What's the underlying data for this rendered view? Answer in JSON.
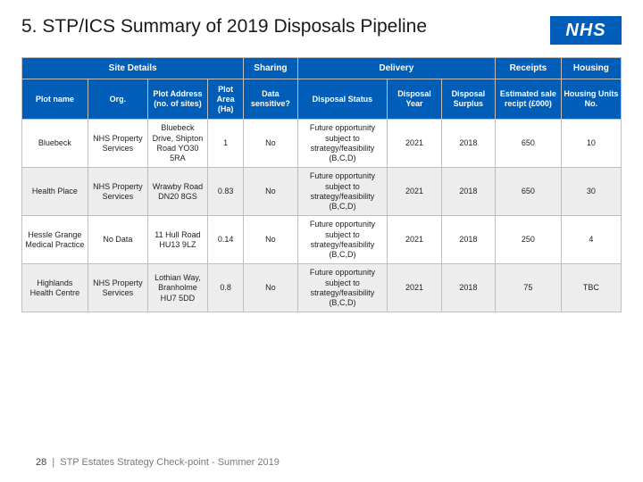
{
  "title": "5. STP/ICS Summary of 2019 Disposals Pipeline",
  "logo_text": "NHS",
  "colors": {
    "header_bg": "#005eb8",
    "header_fg": "#ffffff",
    "row_alt_bg": "#ededed",
    "border": "#bfbfbf",
    "title_color": "#1a1a1a",
    "footer_color": "#7a7a7a"
  },
  "typography": {
    "title_fontsize": 21,
    "header_fontsize": 10,
    "colheader_fontsize": 9,
    "cell_fontsize": 9,
    "footer_fontsize": 11
  },
  "group_headers": [
    {
      "label": "Site Details",
      "span": 4
    },
    {
      "label": "Sharing",
      "span": 1
    },
    {
      "label": "Delivery",
      "span": 3
    },
    {
      "label": "Receipts",
      "span": 1
    },
    {
      "label": "Housing",
      "span": 1
    }
  ],
  "columns": [
    {
      "label": "Plot name",
      "w": 11
    },
    {
      "label": "Org.",
      "w": 10
    },
    {
      "label": "Plot Address (no. of sites)",
      "w": 10
    },
    {
      "label": "Plot Area (Ha)",
      "w": 6
    },
    {
      "label": "Data sensitive?",
      "w": 9
    },
    {
      "label": "Disposal Status",
      "w": 15
    },
    {
      "label": "Disposal Year",
      "w": 9
    },
    {
      "label": "Disposal Surplus",
      "w": 9
    },
    {
      "label": "Estimated sale recipt (£000)",
      "w": 11
    },
    {
      "label": "Housing Units No.",
      "w": 10
    }
  ],
  "rows": [
    {
      "alt": false,
      "cells": [
        "Bluebeck",
        "NHS Property Services",
        "Bluebeck Drive, Shipton Road YO30 5RA",
        "1",
        "No",
        "Future opportunity subject to strategy/feasibility (B,C,D)",
        "2021",
        "2018",
        "650",
        "10"
      ]
    },
    {
      "alt": true,
      "cells": [
        "Health Place",
        "NHS Property Services",
        "Wrawby Road DN20 8GS",
        "0.83",
        "No",
        "Future opportunity subject to strategy/feasibility (B,C,D)",
        "2021",
        "2018",
        "650",
        "30"
      ]
    },
    {
      "alt": false,
      "cells": [
        "Hessle Grange Medical Practice",
        "No Data",
        "11 Hull Road HU13 9LZ",
        "0.14",
        "No",
        "Future opportunity subject to strategy/feasibility (B,C,D)",
        "2021",
        "2018",
        "250",
        "4"
      ]
    },
    {
      "alt": true,
      "cells": [
        "Highlands Health Centre",
        "NHS Property Services",
        "Lothian Way, Branholme HU7 5DD",
        "0.8",
        "No",
        "Future opportunity subject to strategy/feasibility (B,C,D)",
        "2021",
        "2018",
        "75",
        "TBC"
      ]
    }
  ],
  "footer": {
    "page": "28",
    "separator": "|",
    "text": "STP Estates Strategy Check-point - Summer 2019"
  }
}
